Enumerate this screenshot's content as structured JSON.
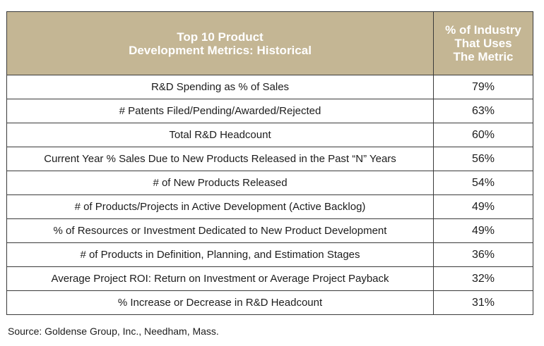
{
  "chart_data": {
    "type": "table",
    "header": {
      "metric_lines": [
        "Top 10 Product",
        "Development Metrics: Historical"
      ],
      "value_lines": [
        "% of Industry",
        "That Uses",
        "The Metric"
      ]
    },
    "rows": [
      {
        "metric": "R&D Spending as % of Sales",
        "value": "79%"
      },
      {
        "metric": "# Patents Filed/Pending/Awarded/Rejected",
        "value": "63%"
      },
      {
        "metric": "Total R&D Headcount",
        "value": "60%"
      },
      {
        "metric": "Current Year % Sales Due to New Products Released in the Past “N” Years",
        "value": "56%"
      },
      {
        "metric": "# of New Products Released",
        "value": "54%"
      },
      {
        "metric": "# of Products/Projects in Active Development (Active Backlog)",
        "value": "49%"
      },
      {
        "metric": "% of Resources or Investment Dedicated to New Product Development",
        "value": "49%"
      },
      {
        "metric": "# of Products in Definition, Planning, and Estimation Stages",
        "value": "36%"
      },
      {
        "metric": "Average Project ROI: Return on Investment or Average Project Payback",
        "value": "32%"
      },
      {
        "metric": "% Increase or Decrease in R&D Headcount",
        "value": "31%"
      }
    ],
    "source": "Source: Goldense Group, Inc., Needham, Mass."
  },
  "colors": {
    "header_background": "#c4b694",
    "header_text": "#ffffff",
    "border": "#3a3a3a"
  }
}
